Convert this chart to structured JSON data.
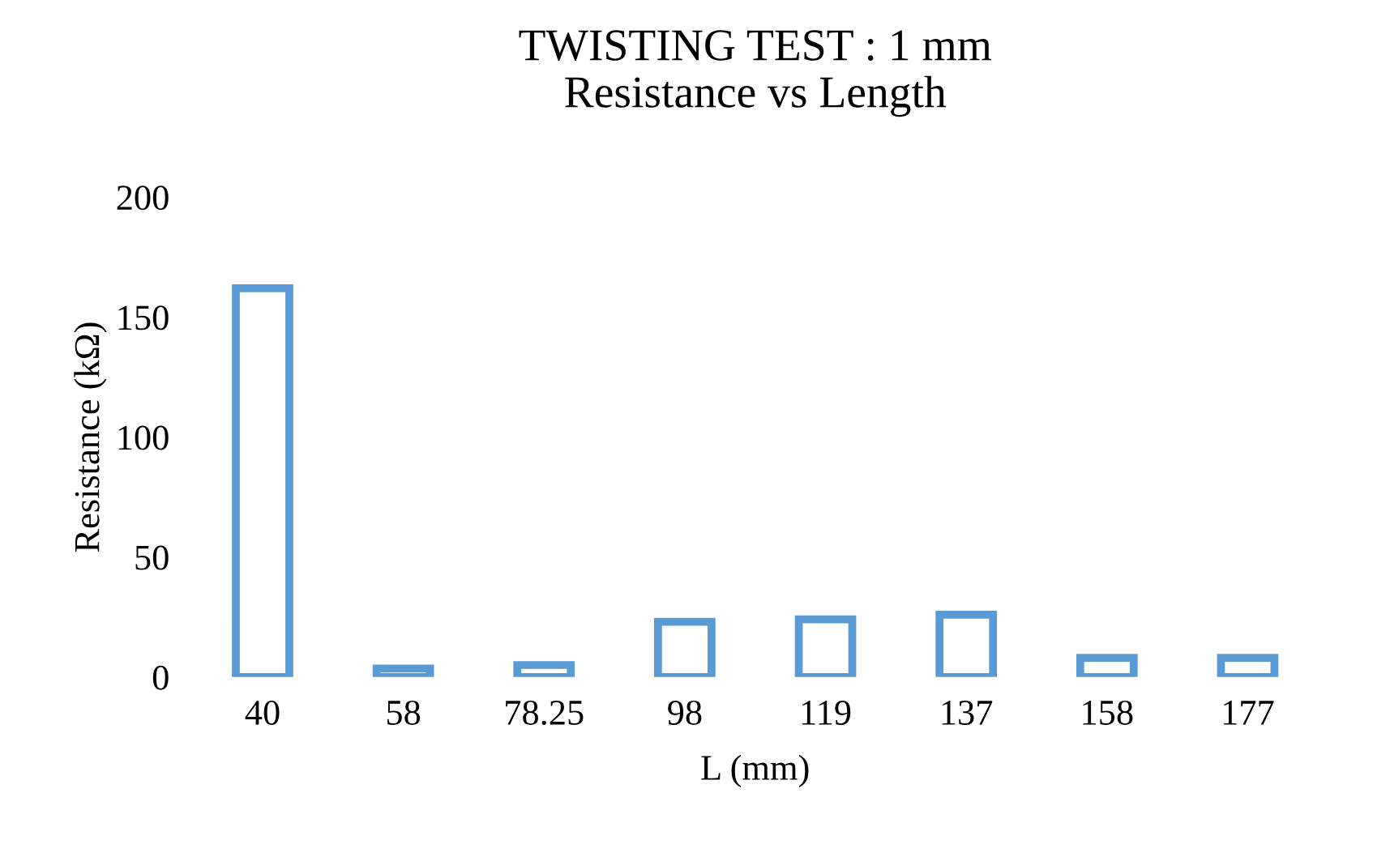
{
  "chart_data": {
    "type": "bar",
    "title": "TWISTING TEST : 1 mm\nResistance vs Length",
    "xlabel": "L (mm)",
    "ylabel": "Resistance (kΩ)",
    "categories": [
      "40",
      "58",
      "78.25",
      "98",
      "119",
      "137",
      "158",
      "177"
    ],
    "series": [
      {
        "color": "#5b9bd5",
        "values": [
          162,
          3.5,
          5,
          23,
          24,
          26,
          8,
          8
        ]
      }
    ],
    "ylim": [
      0,
      200
    ],
    "yticks": [
      0,
      50,
      100,
      150,
      200
    ],
    "grid": false,
    "legend": false
  }
}
